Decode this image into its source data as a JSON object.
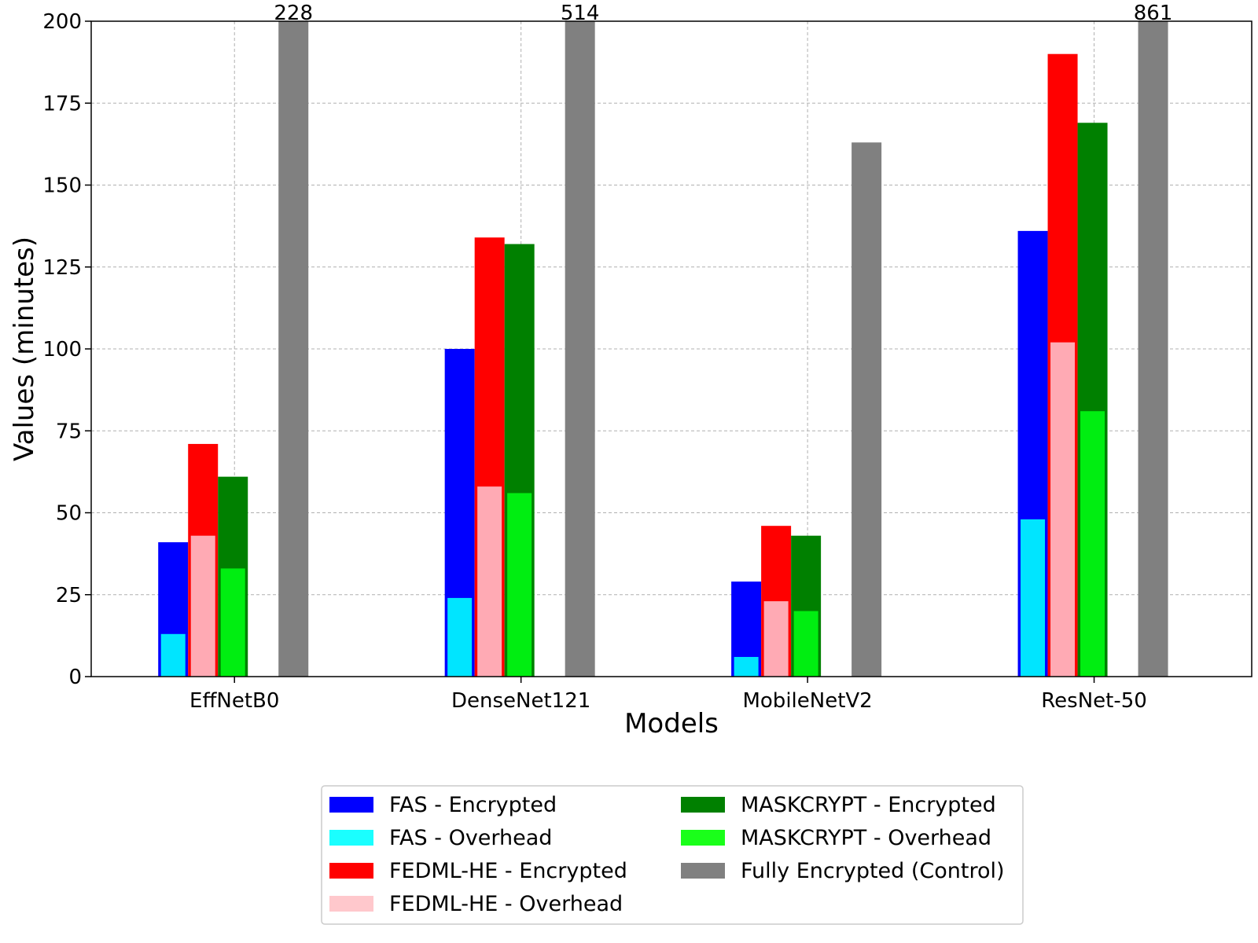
{
  "chart_data": {
    "type": "bar",
    "title": "",
    "xlabel": "Models",
    "ylabel": "Values (minutes)",
    "ylim": [
      0,
      200
    ],
    "yticks": [
      0,
      25,
      50,
      75,
      100,
      125,
      150,
      175,
      200
    ],
    "grid": true,
    "legend_position": "bottom-center",
    "categories": [
      "EffNetB0",
      "DenseNet121",
      "MobileNetV2",
      "ResNet-50"
    ],
    "groups": [
      {
        "name": "FAS",
        "encrypted": {
          "name": "FAS - Encrypted",
          "color": "#0000ff",
          "values": [
            41,
            100,
            29,
            136
          ]
        },
        "overhead": {
          "name": "FAS - Overhead",
          "color": "#00e5ff",
          "values": [
            13,
            24,
            6,
            48
          ]
        }
      },
      {
        "name": "FEDML-HE",
        "encrypted": {
          "name": "FEDML-HE - Encrypted",
          "color": "#ff0000",
          "values": [
            71,
            134,
            46,
            190
          ]
        },
        "overhead": {
          "name": "FEDML-HE - Overhead",
          "color": "#ffaab4",
          "values": [
            43,
            58,
            23,
            102
          ]
        }
      },
      {
        "name": "MASKCRYPT",
        "encrypted": {
          "name": "MASKCRYPT - Encrypted",
          "color": "#008000",
          "values": [
            61,
            132,
            43,
            169
          ]
        },
        "overhead": {
          "name": "MASKCRYPT - Overhead",
          "color": "#00ee11",
          "values": [
            33,
            56,
            20,
            81
          ]
        }
      }
    ],
    "control": {
      "name": "Fully Encrypted (Control)",
      "color": "#808080",
      "values": [
        228,
        514,
        163,
        861
      ],
      "labels": [
        "228",
        "514",
        "",
        "861"
      ]
    },
    "legend": [
      {
        "label": "FAS - Encrypted",
        "color": "#0000ff"
      },
      {
        "label": "FAS - Overhead",
        "color": "#1affff"
      },
      {
        "label": "FEDML-HE - Encrypted",
        "color": "#ff0000"
      },
      {
        "label": "FEDML-HE - Overhead",
        "color": "#ffc8cc"
      },
      {
        "label": "MASKCRYPT - Encrypted",
        "color": "#008000"
      },
      {
        "label": "MASKCRYPT - Overhead",
        "color": "#1aff1a"
      },
      {
        "label": "Fully Encrypted (Control)",
        "color": "#808080"
      }
    ]
  }
}
